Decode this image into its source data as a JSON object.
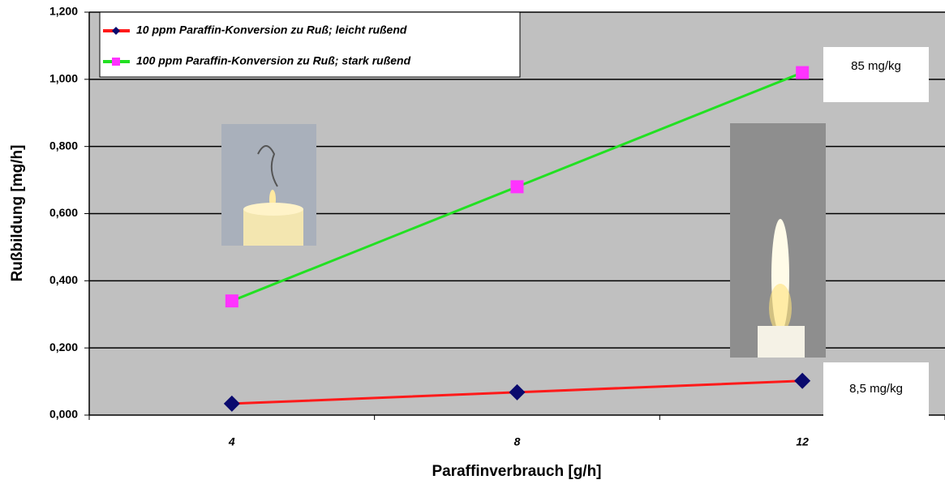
{
  "chart_data": {
    "type": "line",
    "y_label": "Rußbildung [mg/h]",
    "x_label": "Paraffinverbrauch [g/h]",
    "categories": [
      "4",
      "8",
      "12"
    ],
    "series": [
      {
        "name": "10 ppm Paraffin-Konversion zu Ruß; leicht rußend",
        "color": "#ff1a1a",
        "marker_color": "#0a0a6e",
        "marker": "diamond",
        "values": [
          0.034,
          0.068,
          0.102
        ]
      },
      {
        "name": "100 ppm Paraffin-Konversion zu Ruß; stark rußend",
        "color": "#22e022",
        "marker_color": "#ff33ff",
        "marker": "square",
        "values": [
          0.34,
          0.68,
          1.02
        ]
      }
    ],
    "ylim": [
      0,
      1.2
    ],
    "yticks": [
      {
        "value": 0,
        "label": "0,000"
      },
      {
        "value": 0.2,
        "label": "0,200"
      },
      {
        "value": 0.4,
        "label": "0,400"
      },
      {
        "value": 0.6,
        "label": "0,600"
      },
      {
        "value": 0.8,
        "label": "0,800"
      },
      {
        "value": 1.0,
        "label": "1,000"
      },
      {
        "value": 1.2,
        "label": "1,200"
      }
    ],
    "grid": true,
    "legend_position": "top-left",
    "annotations": [
      "85 mg/kg",
      "8,5 mg/kg"
    ]
  }
}
